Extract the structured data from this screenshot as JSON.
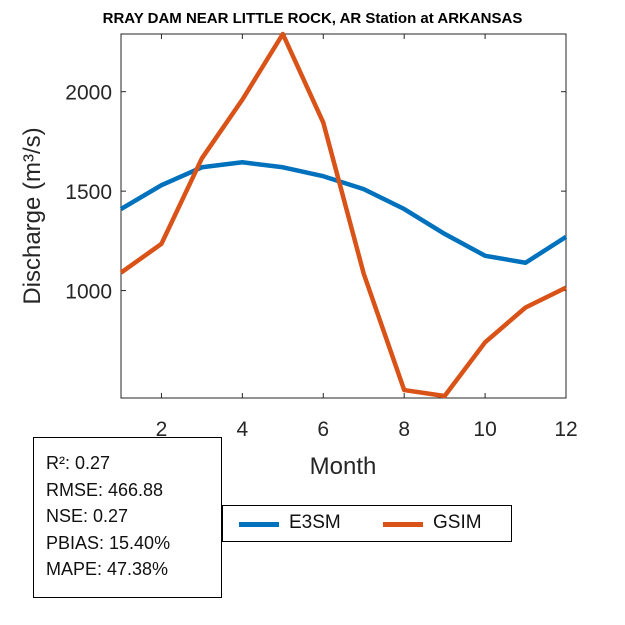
{
  "chart_data": {
    "type": "line",
    "title": "RRAY DAM NEAR LITTLE ROCK, AR  Station at  ARKANSAS",
    "xlabel": "Month",
    "ylabel": "Discharge (m³/s)",
    "xlim": [
      1,
      12
    ],
    "ylim": [
      460,
      2290
    ],
    "xticks": [
      2,
      4,
      6,
      8,
      10,
      12
    ],
    "yticks": [
      1000,
      1500,
      2000
    ],
    "grid": false,
    "legend_position": "bottom",
    "x": [
      1,
      2,
      3,
      4,
      5,
      6,
      7,
      8,
      9,
      10,
      11,
      12
    ],
    "series": [
      {
        "name": "E3SM",
        "color": "#0072BD",
        "values": [
          1410,
          1530,
          1620,
          1645,
          1620,
          1575,
          1510,
          1410,
          1285,
          1175,
          1140,
          1270
        ]
      },
      {
        "name": "GSIM",
        "color": "#D95319",
        "values": [
          1090,
          1235,
          1665,
          1960,
          2290,
          1845,
          1085,
          500,
          470,
          740,
          915,
          1015
        ]
      }
    ]
  },
  "stats": {
    "r2": "R²: 0.27",
    "rmse": "RMSE: 466.88",
    "nse": "NSE: 0.27",
    "pbias": "PBIAS: 15.40%",
    "mape": "MAPE: 47.38%"
  }
}
